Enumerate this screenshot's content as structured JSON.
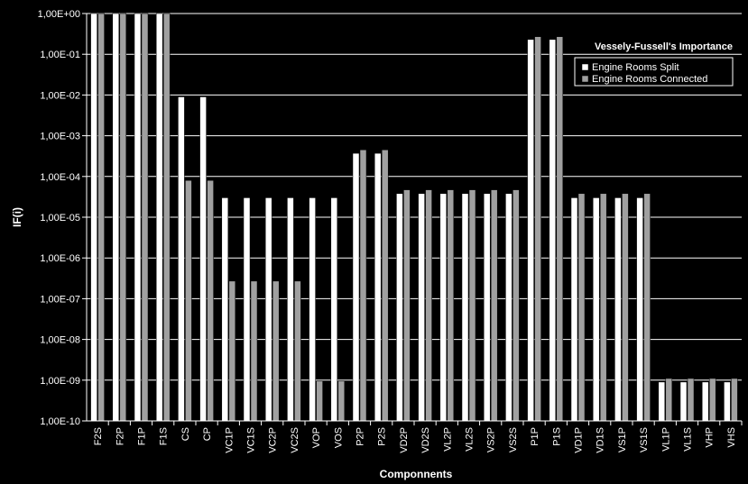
{
  "chart_data": {
    "type": "bar",
    "scale": "log",
    "ylim": [
      1e-10,
      1
    ],
    "yticks": [
      "1,00E-10",
      "1,00E-09",
      "1,00E-08",
      "1,00E-07",
      "1,00E-06",
      "1,00E-05",
      "1,00E-04",
      "1,00E-03",
      "1,00E-02",
      "1,00E-01",
      "1,00E+00"
    ],
    "xlabel": "Componnents",
    "ylabel": "IF(i)",
    "grid": true,
    "legend": {
      "title": "Vessely-Fussell's Importance",
      "position": "top-right"
    },
    "categories": [
      "F2S",
      "F2P",
      "F1P",
      "F1S",
      "CS",
      "CP",
      "VC1P",
      "VC1S",
      "VC2P",
      "VC2S",
      "VOP",
      "VOS",
      "P2P",
      "P2S",
      "VD2P",
      "VD2S",
      "VL2P",
      "VL2S",
      "VS2P",
      "VS2S",
      "P1P",
      "P1S",
      "VD1P",
      "VD1S",
      "VS1P",
      "VS1S",
      "VL1P",
      "VL1S",
      "VHP",
      "VHS"
    ],
    "series": [
      {
        "name": "Engine Rooms Split",
        "color": "#ffffff",
        "values": [
          1,
          1,
          1,
          1,
          0.009,
          0.009,
          3e-05,
          3e-05,
          3e-05,
          3e-05,
          3e-05,
          3e-05,
          0.00037,
          0.00037,
          3.8e-05,
          3.8e-05,
          3.8e-05,
          3.8e-05,
          3.8e-05,
          3.8e-05,
          0.23,
          0.23,
          3e-05,
          3e-05,
          3e-05,
          3e-05,
          9e-10,
          9e-10,
          9e-10,
          9e-10
        ]
      },
      {
        "name": "Engine Rooms Connected",
        "color": "#a0a0a0",
        "values": [
          1,
          1,
          1,
          1,
          8e-05,
          8e-05,
          2.7e-07,
          2.7e-07,
          2.7e-07,
          2.7e-07,
          9.5e-10,
          9.5e-10,
          0.00045,
          0.00045,
          4.7e-05,
          4.7e-05,
          4.7e-05,
          4.7e-05,
          4.7e-05,
          4.7e-05,
          0.27,
          0.27,
          3.8e-05,
          3.8e-05,
          3.8e-05,
          3.8e-05,
          1.1e-09,
          1.1e-09,
          1.1e-09,
          1.1e-09
        ]
      }
    ]
  }
}
